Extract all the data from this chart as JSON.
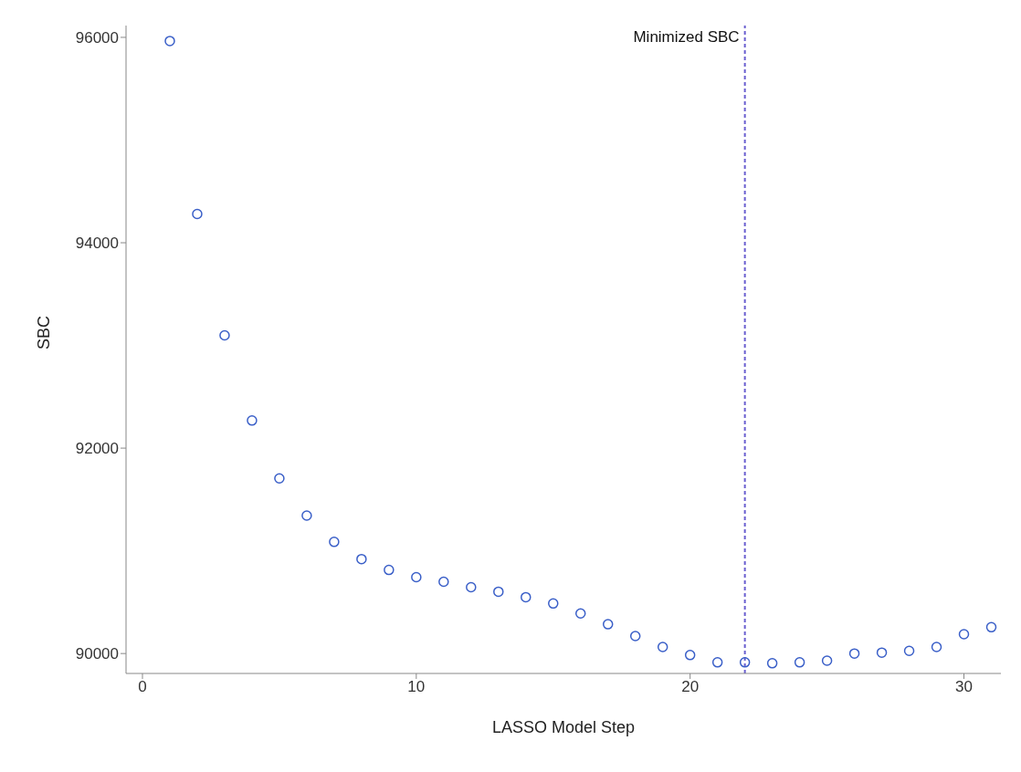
{
  "chart_data": {
    "type": "scatter",
    "xlabel": "LASSO Model Step",
    "ylabel": "SBC",
    "x": [
      1,
      2,
      3,
      4,
      5,
      6,
      7,
      8,
      9,
      10,
      11,
      12,
      13,
      14,
      15,
      16,
      17,
      18,
      19,
      20,
      21,
      22,
      23,
      24,
      25,
      26,
      27,
      28,
      29,
      30,
      31
    ],
    "series": [
      {
        "color": "#3a5fc8",
        "values": [
          95965,
          94280,
          93098,
          92269,
          91705,
          91343,
          91087,
          90920,
          90814,
          90743,
          90699,
          90646,
          90602,
          90549,
          90487,
          90390,
          90285,
          90170,
          90064,
          89985,
          89914,
          89914,
          89905,
          89914,
          89930,
          90000,
          90009,
          90026,
          90064,
          90188,
          90256
        ]
      }
    ],
    "xlim": [
      -0.6,
      31.35
    ],
    "xticks": [
      0,
      10,
      20,
      30
    ],
    "ylim": [
      89806,
      96115
    ],
    "yticks": [
      90000,
      92000,
      94000,
      96000
    ],
    "ref_lines": [
      {
        "axis": "x",
        "value": 22,
        "label": "Minimized SBC",
        "color": "#6a5fd0",
        "line_style": "dashed"
      }
    ],
    "marker": "circle",
    "grid": false,
    "legend": false
  }
}
